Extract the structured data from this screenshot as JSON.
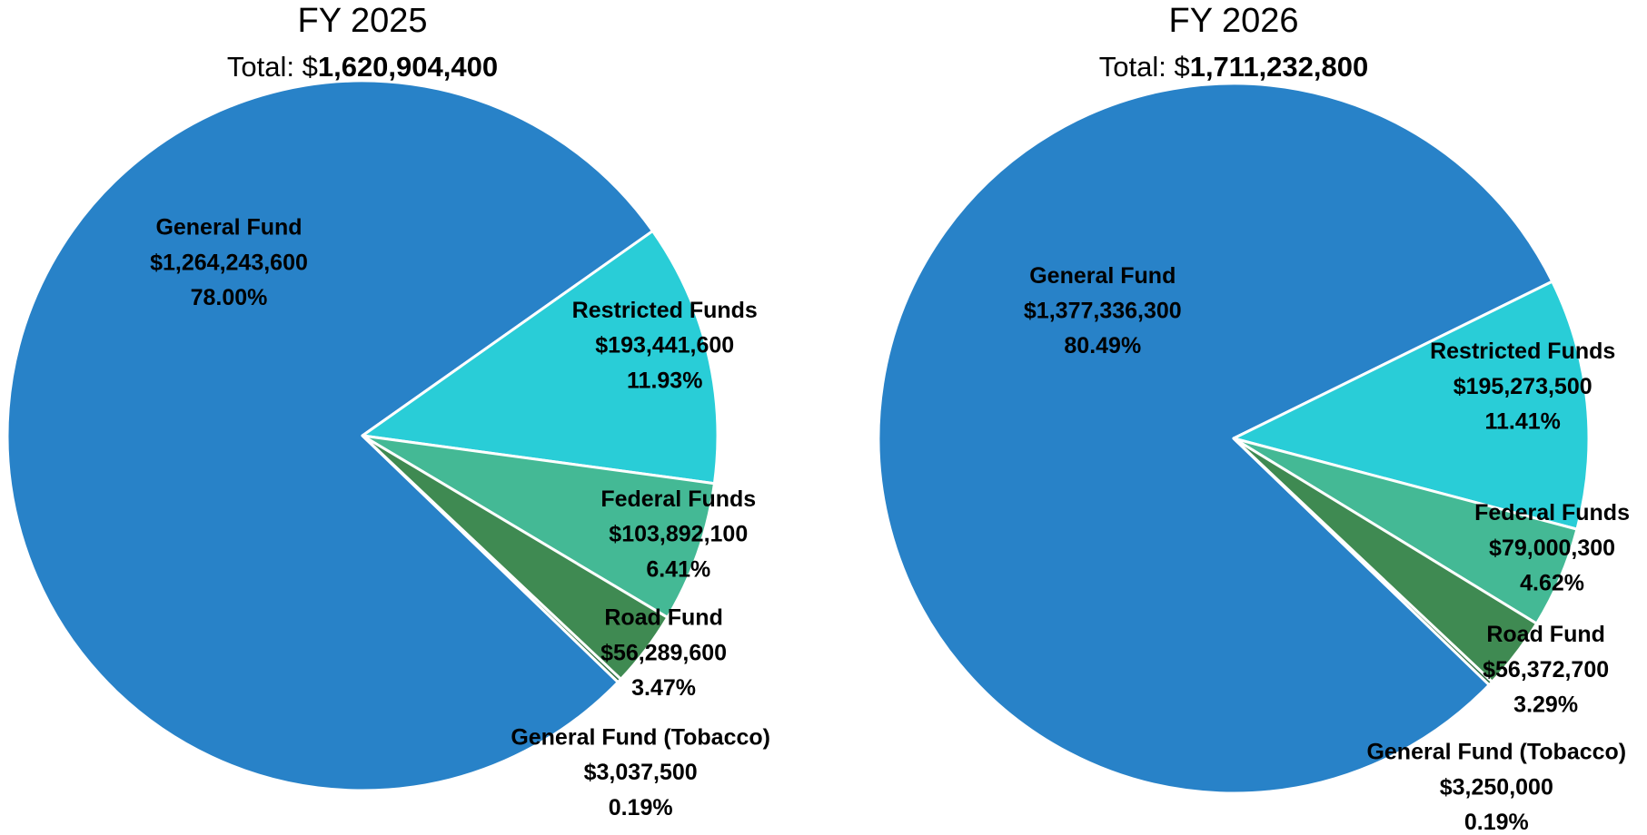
{
  "chart_data": [
    {
      "type": "pie",
      "title": "FY 2025",
      "total_label": "Total: $",
      "total": "1,620,904,400",
      "categories": [
        "General Fund",
        "Restricted Funds",
        "Federal Funds",
        "Road Fund",
        "General Fund (Tobacco)"
      ],
      "values": [
        1264243600,
        193441600,
        103892100,
        56289600,
        3037500
      ],
      "value_labels": [
        "$1,264,243,600",
        "$193,441,600",
        "$103,892,100",
        "$56,289,600",
        "$3,037,500"
      ],
      "percents": [
        78.0,
        11.93,
        6.41,
        3.47,
        0.19
      ],
      "percent_labels": [
        "78.00%",
        "11.93%",
        "6.41%",
        "3.47%",
        "0.19%"
      ],
      "colors": [
        "#2882c8",
        "#29cdd7",
        "#44b995",
        "#3f8a52",
        "#2f6f42"
      ]
    },
    {
      "type": "pie",
      "title": "FY 2026",
      "total_label": "Total: $",
      "total": "1,711,232,800",
      "categories": [
        "General Fund",
        "Restricted Funds",
        "Federal Funds",
        "Road Fund",
        "General Fund (Tobacco)"
      ],
      "values": [
        1377336300,
        195273500,
        79000300,
        56372700,
        3250000
      ],
      "value_labels": [
        "$1,377,336,300",
        "$195,273,500",
        "$79,000,300",
        "$56,372,700",
        "$3,250,000"
      ],
      "percents": [
        80.49,
        11.41,
        4.62,
        3.29,
        0.19
      ],
      "percent_labels": [
        "80.49%",
        "11.41%",
        "4.62%",
        "3.29%",
        "0.19%"
      ],
      "colors": [
        "#2882c8",
        "#29cdd7",
        "#44b995",
        "#3f8a52",
        "#2f6f42"
      ]
    }
  ]
}
